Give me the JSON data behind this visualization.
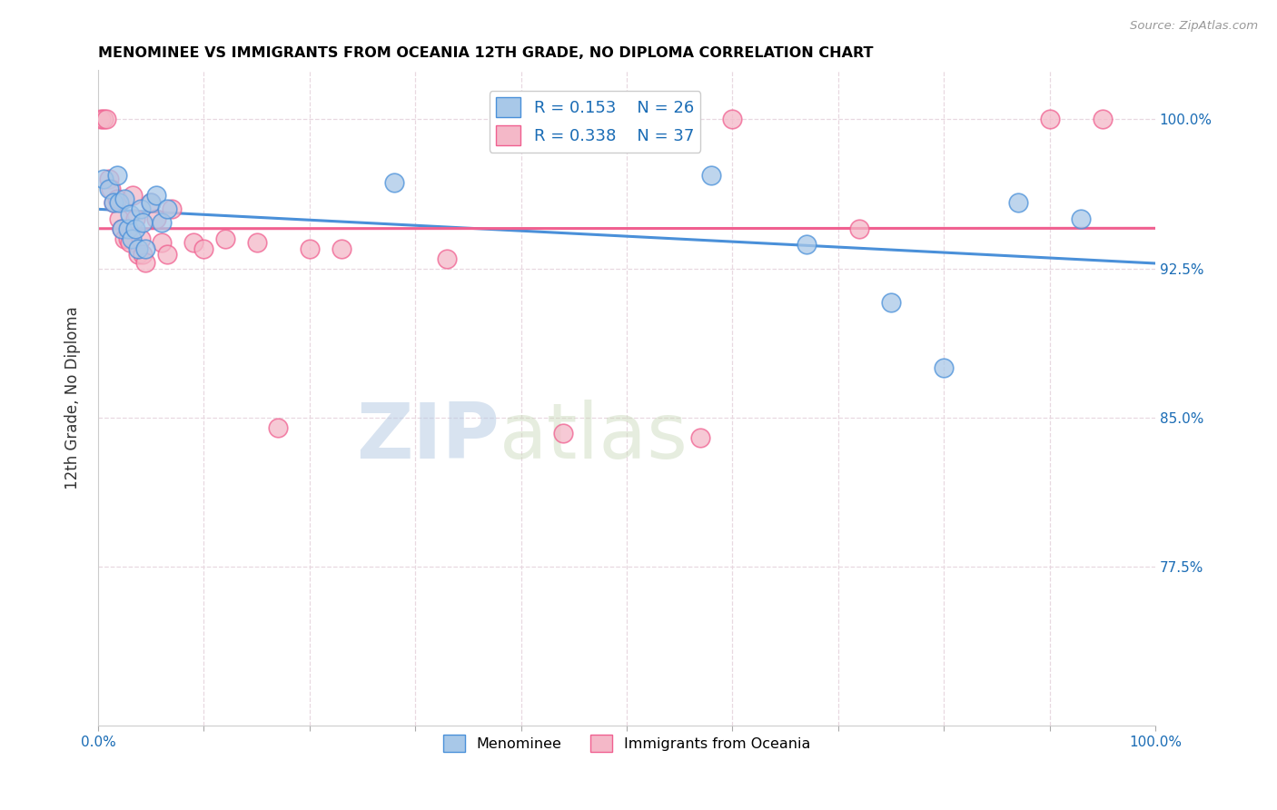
{
  "title": "MENOMINEE VS IMMIGRANTS FROM OCEANIA 12TH GRADE, NO DIPLOMA CORRELATION CHART",
  "source": "Source: ZipAtlas.com",
  "ylabel": "12th Grade, No Diploma",
  "xlim": [
    0.0,
    1.0
  ],
  "ylim": [
    0.695,
    1.025
  ],
  "xticks": [
    0.0,
    0.1,
    0.2,
    0.3,
    0.4,
    0.5,
    0.6,
    0.7,
    0.8,
    0.9,
    1.0
  ],
  "xticklabels": [
    "0.0%",
    "",
    "",
    "",
    "",
    "",
    "",
    "",
    "",
    "",
    "100.0%"
  ],
  "yticks": [
    0.775,
    0.85,
    0.925,
    1.0
  ],
  "yticklabels": [
    "77.5%",
    "85.0%",
    "92.5%",
    "100.0%"
  ],
  "menominee_color": "#a8c8e8",
  "oceania_color": "#f4b8c8",
  "menominee_edge": "#4a90d9",
  "oceania_edge": "#f06090",
  "line_blue": "#4a90d9",
  "line_pink": "#f06090",
  "R_menominee": 0.153,
  "N_menominee": 26,
  "R_oceania": 0.338,
  "N_oceania": 37,
  "background": "#ffffff",
  "grid_color": "#e8d8e0",
  "watermark_zip": "ZIP",
  "watermark_atlas": "atlas",
  "menominee_x": [
    0.005,
    0.01,
    0.015,
    0.018,
    0.02,
    0.022,
    0.025,
    0.028,
    0.03,
    0.032,
    0.035,
    0.038,
    0.04,
    0.042,
    0.045,
    0.05,
    0.055,
    0.06,
    0.065,
    0.28,
    0.58,
    0.67,
    0.75,
    0.8,
    0.87,
    0.93
  ],
  "menominee_y": [
    0.97,
    0.965,
    0.958,
    0.972,
    0.958,
    0.945,
    0.96,
    0.945,
    0.952,
    0.94,
    0.945,
    0.935,
    0.955,
    0.948,
    0.935,
    0.958,
    0.962,
    0.948,
    0.955,
    0.968,
    0.972,
    0.937,
    0.908,
    0.875,
    0.958,
    0.95
  ],
  "oceania_x": [
    0.003,
    0.005,
    0.008,
    0.01,
    0.012,
    0.015,
    0.018,
    0.02,
    0.022,
    0.025,
    0.028,
    0.03,
    0.033,
    0.035,
    0.038,
    0.04,
    0.042,
    0.045,
    0.05,
    0.055,
    0.06,
    0.065,
    0.07,
    0.09,
    0.1,
    0.12,
    0.15,
    0.17,
    0.2,
    0.23,
    0.33,
    0.44,
    0.57,
    0.6,
    0.72,
    0.9,
    0.95
  ],
  "oceania_y": [
    1.0,
    1.0,
    1.0,
    0.97,
    0.965,
    0.958,
    0.96,
    0.95,
    0.945,
    0.94,
    0.94,
    0.938,
    0.962,
    0.95,
    0.932,
    0.94,
    0.932,
    0.928,
    0.958,
    0.95,
    0.938,
    0.932,
    0.955,
    0.938,
    0.935,
    0.94,
    0.938,
    0.845,
    0.935,
    0.935,
    0.93,
    0.842,
    0.84,
    1.0,
    0.945,
    1.0,
    1.0
  ]
}
